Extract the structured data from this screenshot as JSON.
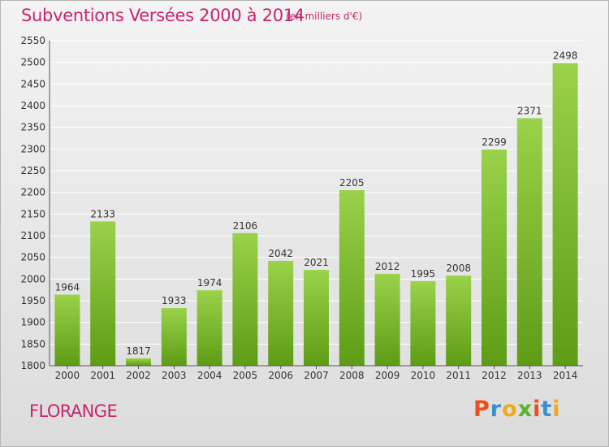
{
  "header": {
    "title": "Subventions Versées 2000 à 2014",
    "unit_note": "(en milliers d'€)"
  },
  "footer": {
    "city": "FLORANGE",
    "brand_letters": [
      "P",
      "r",
      "o",
      "x",
      "i",
      "t",
      "i"
    ],
    "brand_colors": [
      "#e8501e",
      "#3a8fd0",
      "#f0a81e",
      "#58b428",
      "#e8501e",
      "#3a8fd0",
      "#f0a81e"
    ]
  },
  "colors": {
    "accent": "#c8266c",
    "bar_top": "#9ad24a",
    "bar_bottom": "#5e9c16",
    "axis": "#555555",
    "grid": "#ffffff"
  },
  "chart_data": {
    "type": "bar",
    "categories": [
      "2000",
      "2001",
      "2002",
      "2003",
      "2004",
      "2005",
      "2006",
      "2007",
      "2008",
      "2009",
      "2010",
      "2011",
      "2012",
      "2013",
      "2014"
    ],
    "values": [
      1964,
      2133,
      1817,
      1933,
      1974,
      2106,
      2042,
      2021,
      2205,
      2012,
      1995,
      2008,
      2299,
      2371,
      2498
    ],
    "title": "Subventions Versées 2000 à 2014",
    "ylim": [
      1800,
      2550
    ],
    "yticks": [
      1800,
      1850,
      1900,
      1950,
      2000,
      2050,
      2100,
      2150,
      2200,
      2250,
      2300,
      2350,
      2400,
      2450,
      2500,
      2550
    ],
    "grid": true,
    "data_labels": true
  }
}
